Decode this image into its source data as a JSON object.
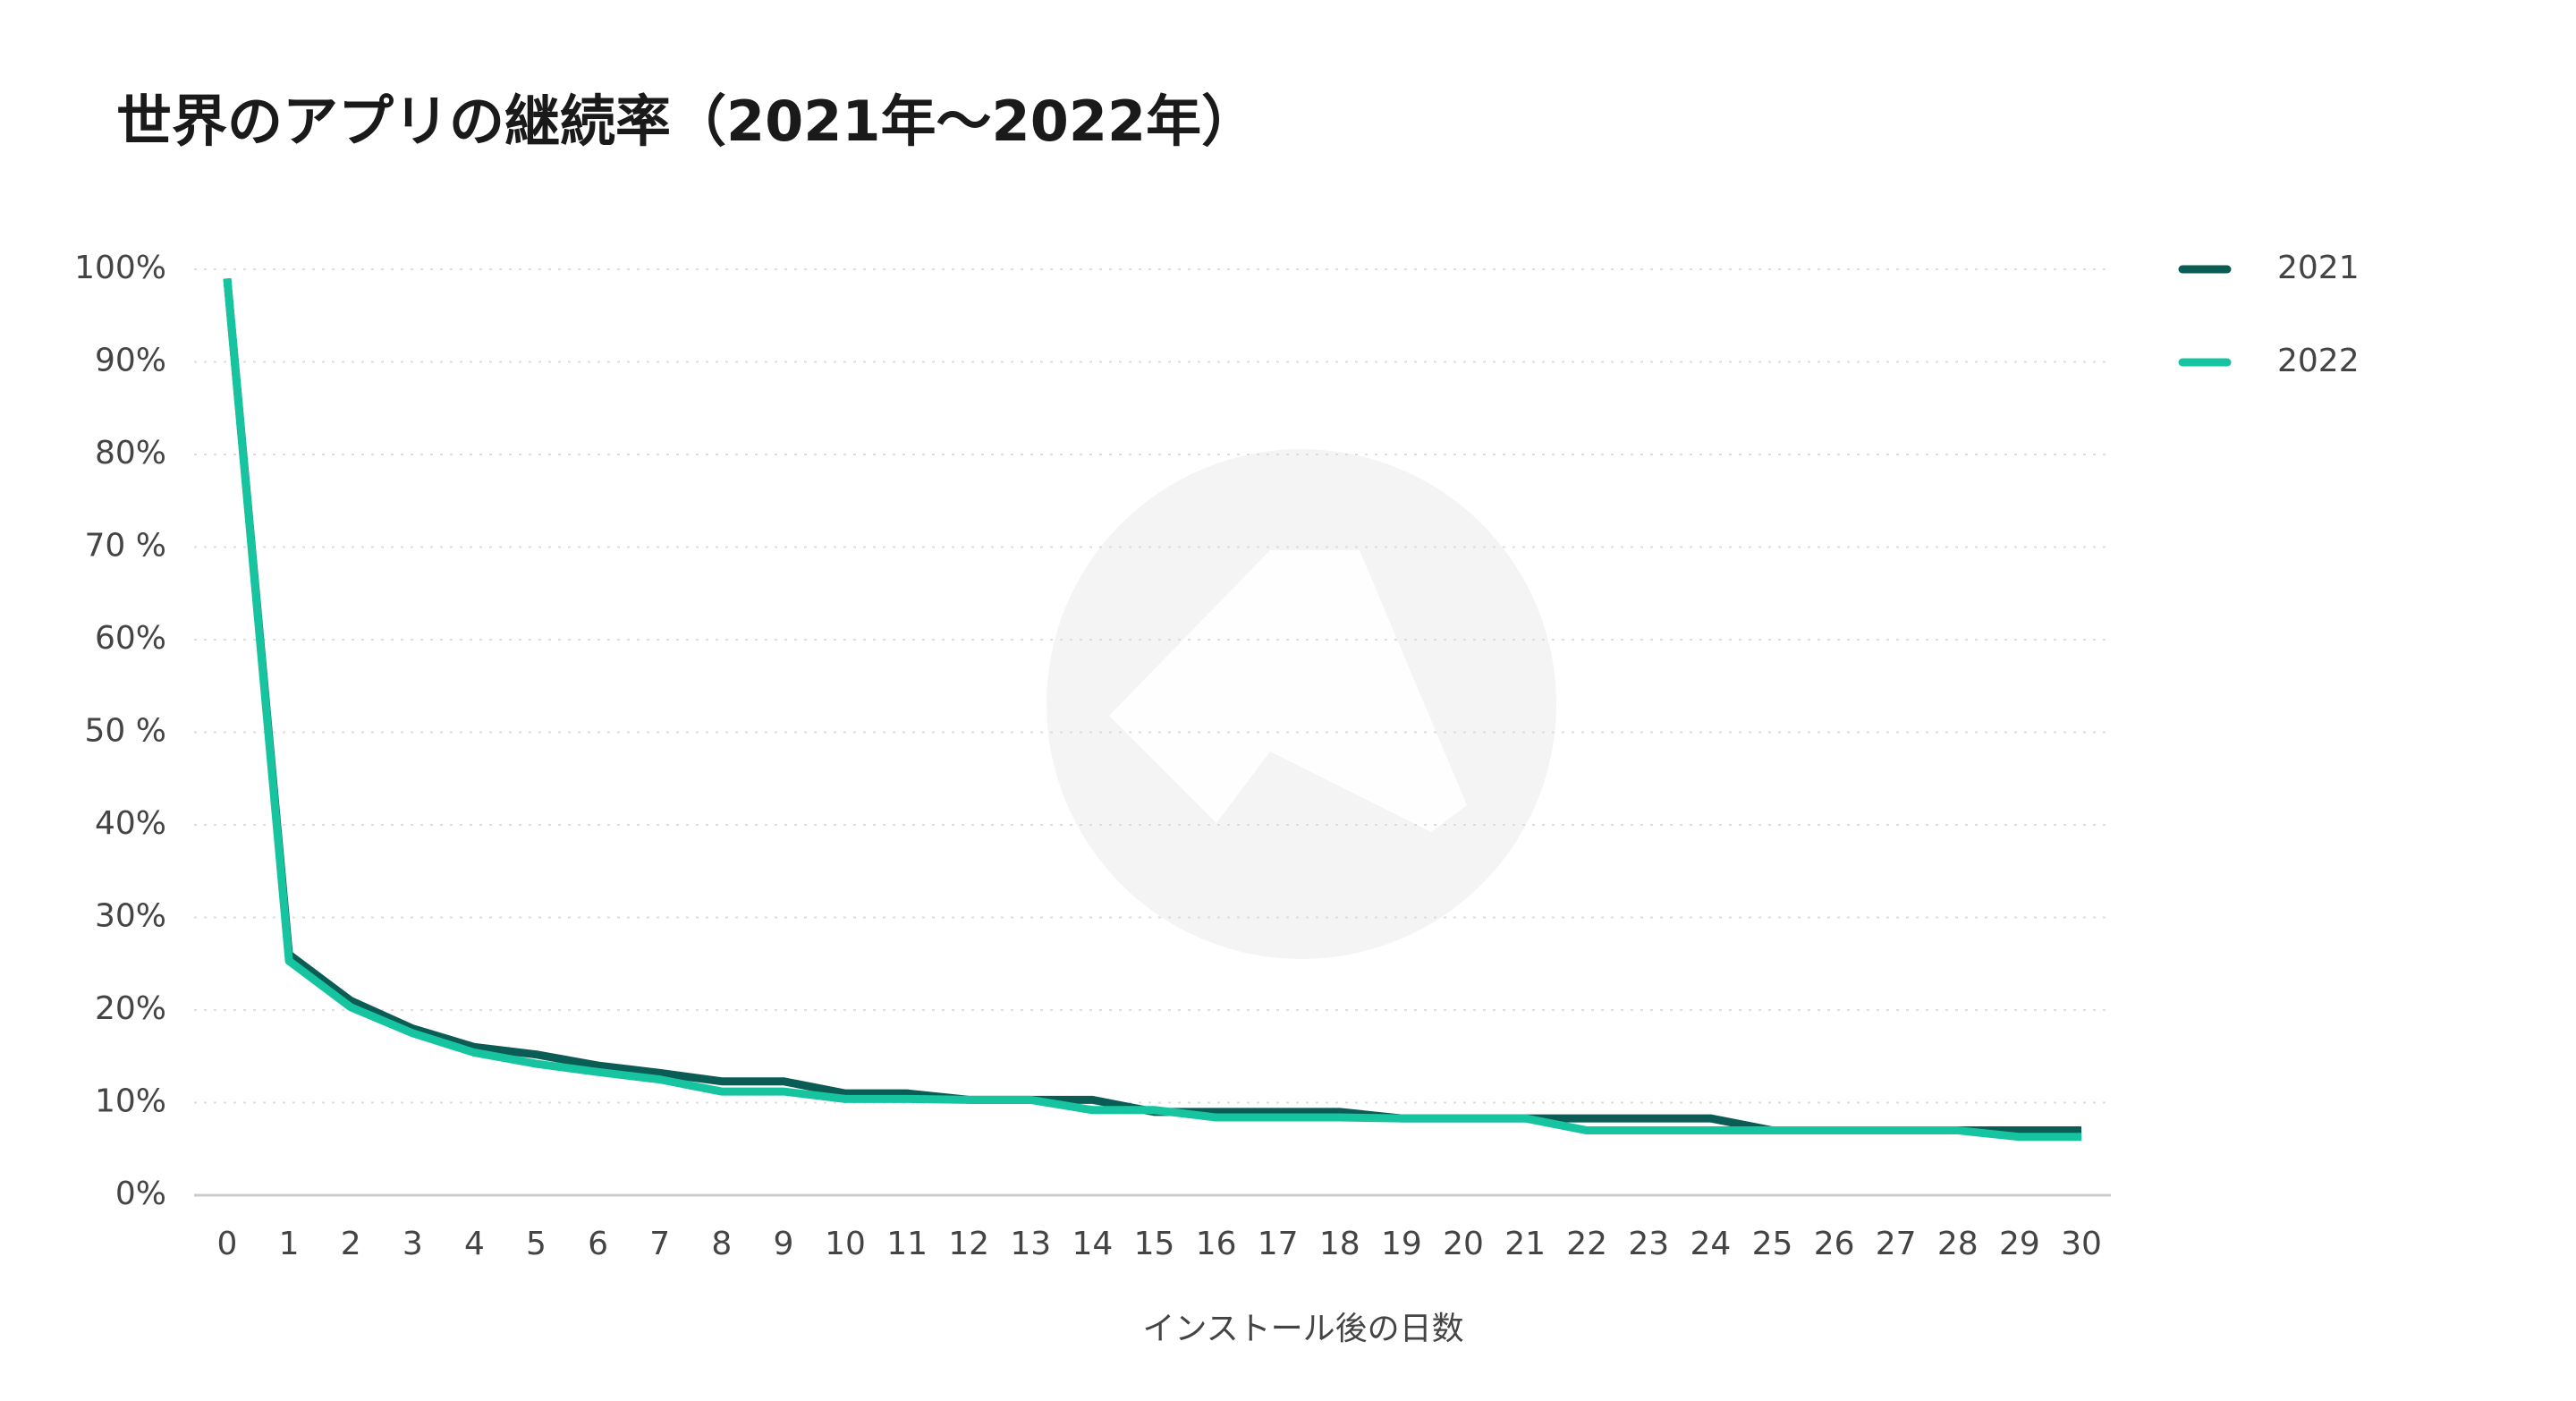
{
  "chart_data": {
    "type": "line",
    "title": "世界のアプリの継続率（2021年〜2022年）",
    "xlabel": "インストール後の日数",
    "x": [
      0,
      1,
      2,
      3,
      4,
      5,
      6,
      7,
      8,
      9,
      10,
      11,
      12,
      13,
      14,
      15,
      16,
      17,
      18,
      19,
      20,
      21,
      22,
      23,
      24,
      25,
      26,
      27,
      28,
      29,
      30
    ],
    "xlim": [
      0,
      30
    ],
    "xticks": [
      0,
      1,
      2,
      3,
      4,
      5,
      6,
      7,
      8,
      9,
      10,
      11,
      12,
      13,
      14,
      15,
      16,
      17,
      18,
      19,
      20,
      21,
      22,
      23,
      24,
      25,
      26,
      27,
      28,
      29,
      30
    ],
    "ylim": [
      0,
      100
    ],
    "yticks": [
      {
        "value": 0,
        "label": "0%"
      },
      {
        "value": 10,
        "label": "10%"
      },
      {
        "value": 20,
        "label": "20%"
      },
      {
        "value": 30,
        "label": "30%"
      },
      {
        "value": 40,
        "label": "40%"
      },
      {
        "value": 50,
        "label": "50 %"
      },
      {
        "value": 60,
        "label": "60%"
      },
      {
        "value": 70,
        "label": "70 %"
      },
      {
        "value": 80,
        "label": "80%"
      },
      {
        "value": 90,
        "label": "90%"
      },
      {
        "value": 100,
        "label": "100%"
      }
    ],
    "grid": true,
    "legend": "right",
    "series": [
      {
        "name": "2021",
        "color": "#0b5c55",
        "values": [
          99,
          26,
          21,
          18,
          16,
          15.2,
          14,
          13.2,
          12.3,
          12.3,
          11,
          11,
          10.3,
          10.3,
          10.3,
          9,
          9,
          9,
          9,
          8.3,
          8.3,
          8.3,
          8.3,
          8.3,
          8.3,
          7,
          7,
          7,
          7,
          7,
          7
        ]
      },
      {
        "name": "2022",
        "color": "#17c4a0",
        "values": [
          99,
          25.3,
          20.3,
          17.5,
          15.4,
          14.2,
          13.3,
          12.5,
          11.2,
          11.2,
          10.4,
          10.4,
          10.3,
          10.3,
          9.2,
          9.2,
          8.4,
          8.4,
          8.4,
          8.3,
          8.3,
          8.3,
          7,
          7,
          7,
          7,
          7,
          7,
          7,
          6.3,
          6.3
        ]
      }
    ]
  }
}
